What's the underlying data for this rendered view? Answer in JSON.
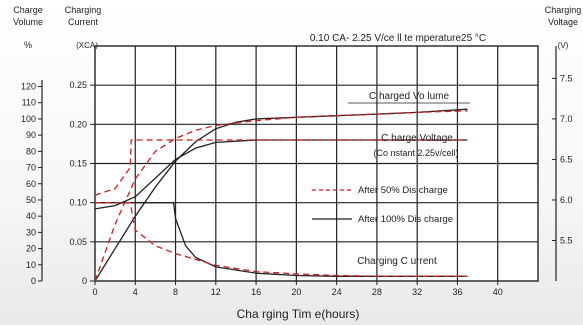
{
  "chart_data": {
    "type": "line",
    "title": "0.10 CA- 2.25 V/ce ll   te mperature25 °C",
    "xlabel": "Cha rging Tim e(hours)",
    "left_labels": {
      "volume_title": [
        "Charge",
        "Volume"
      ],
      "volume_unit": "%",
      "current_title": [
        "Charging",
        "Current"
      ],
      "current_unit": "(XCA)"
    },
    "right_labels": {
      "voltage_title": [
        "Charging",
        "Voltage"
      ],
      "voltage_unit": "(V)"
    },
    "x_ticks": [
      "0",
      "4",
      "8",
      "12",
      "16",
      "20",
      "24",
      "28",
      "32",
      "36",
      "40"
    ],
    "xlim": [
      0,
      44
    ],
    "current_axis": {
      "ticks": [
        "0",
        "0.05",
        "0.10",
        "0.15",
        "0.20",
        "0.25"
      ],
      "ylim": [
        0,
        0.3
      ]
    },
    "volume_axis": {
      "ticks": [
        "0",
        "10",
        "20",
        "30",
        "40",
        "50",
        "60",
        "70",
        "80",
        "90",
        "100",
        "110",
        "120"
      ],
      "ylim": [
        0,
        145
      ]
    },
    "voltage_axis": {
      "ticks": [
        "5.5",
        "6.0",
        "6.5",
        "7.0",
        "7.5"
      ],
      "ylim": [
        5.0,
        7.9
      ]
    },
    "grid": true,
    "legend": [
      {
        "name": "After 50% Dis charge",
        "style": "dashed",
        "color": "#cc1f1f"
      },
      {
        "name": "After 100% Dis charge",
        "style": "solid",
        "color": "#222222"
      }
    ],
    "annotations": [
      {
        "lines": [
          "C harged Vo lume"
        ]
      },
      {
        "lines": [
          "C harge Voltage",
          "(Co nstant 2.25v/cell)"
        ]
      },
      {
        "lines": [
          "Charging C urrent"
        ]
      }
    ],
    "series": [
      {
        "curve": "volume",
        "condition": "after_100",
        "axis": "volume",
        "style": "solid",
        "color": "#222222",
        "x": [
          0,
          2,
          4,
          6,
          8,
          10,
          12,
          14,
          16,
          20,
          24,
          28,
          32,
          37
        ],
        "y": [
          0,
          20,
          40,
          58,
          74,
          86,
          94,
          98,
          100,
          101,
          102,
          103,
          104,
          106
        ]
      },
      {
        "curve": "volume",
        "condition": "after_50",
        "axis": "volume",
        "style": "dashed",
        "color": "#cc1f1f",
        "x": [
          0,
          2,
          4,
          6,
          8,
          10,
          12,
          16,
          20,
          24,
          28,
          32,
          37
        ],
        "y": [
          0,
          35,
          63,
          80,
          88,
          93,
          96,
          99,
          101,
          102,
          103,
          104,
          105
        ]
      },
      {
        "curve": "voltage",
        "condition": "after_100",
        "axis": "voltage",
        "style": "solid",
        "color": "#222222",
        "x": [
          0,
          2,
          4,
          6,
          8,
          10,
          12,
          16,
          20,
          24,
          28,
          32,
          37
        ],
        "y": [
          5.89,
          5.93,
          6.04,
          6.27,
          6.5,
          6.64,
          6.71,
          6.74,
          6.74,
          6.74,
          6.74,
          6.74,
          6.74
        ]
      },
      {
        "curve": "voltage",
        "condition": "after_50",
        "axis": "voltage",
        "style": "dashed",
        "color": "#cc1f1f",
        "x": [
          0,
          2,
          3.5,
          3.6,
          6,
          8,
          12,
          16,
          20,
          24,
          28,
          32,
          37
        ],
        "y": [
          6.06,
          6.14,
          6.4,
          6.74,
          6.74,
          6.74,
          6.74,
          6.74,
          6.74,
          6.74,
          6.74,
          6.74,
          6.74
        ]
      },
      {
        "curve": "current",
        "condition": "after_100",
        "axis": "current",
        "style": "solid",
        "color": "#222222",
        "x": [
          0,
          2,
          4,
          6,
          7.8,
          8,
          9,
          10,
          12,
          16,
          20,
          24,
          28,
          32,
          37
        ],
        "y": [
          0.1,
          0.1,
          0.1,
          0.1,
          0.1,
          0.08,
          0.045,
          0.03,
          0.018,
          0.01,
          0.007,
          0.006,
          0.006,
          0.006,
          0.006
        ]
      },
      {
        "curve": "current",
        "condition": "after_50",
        "axis": "current",
        "style": "dashed",
        "color": "#cc1f1f",
        "x": [
          0,
          2,
          3.5,
          4,
          6,
          8,
          12,
          16,
          20,
          24,
          28,
          32,
          37
        ],
        "y": [
          0.1,
          0.1,
          0.1,
          0.065,
          0.045,
          0.035,
          0.02,
          0.012,
          0.009,
          0.007,
          0.006,
          0.006,
          0.006
        ]
      }
    ]
  }
}
